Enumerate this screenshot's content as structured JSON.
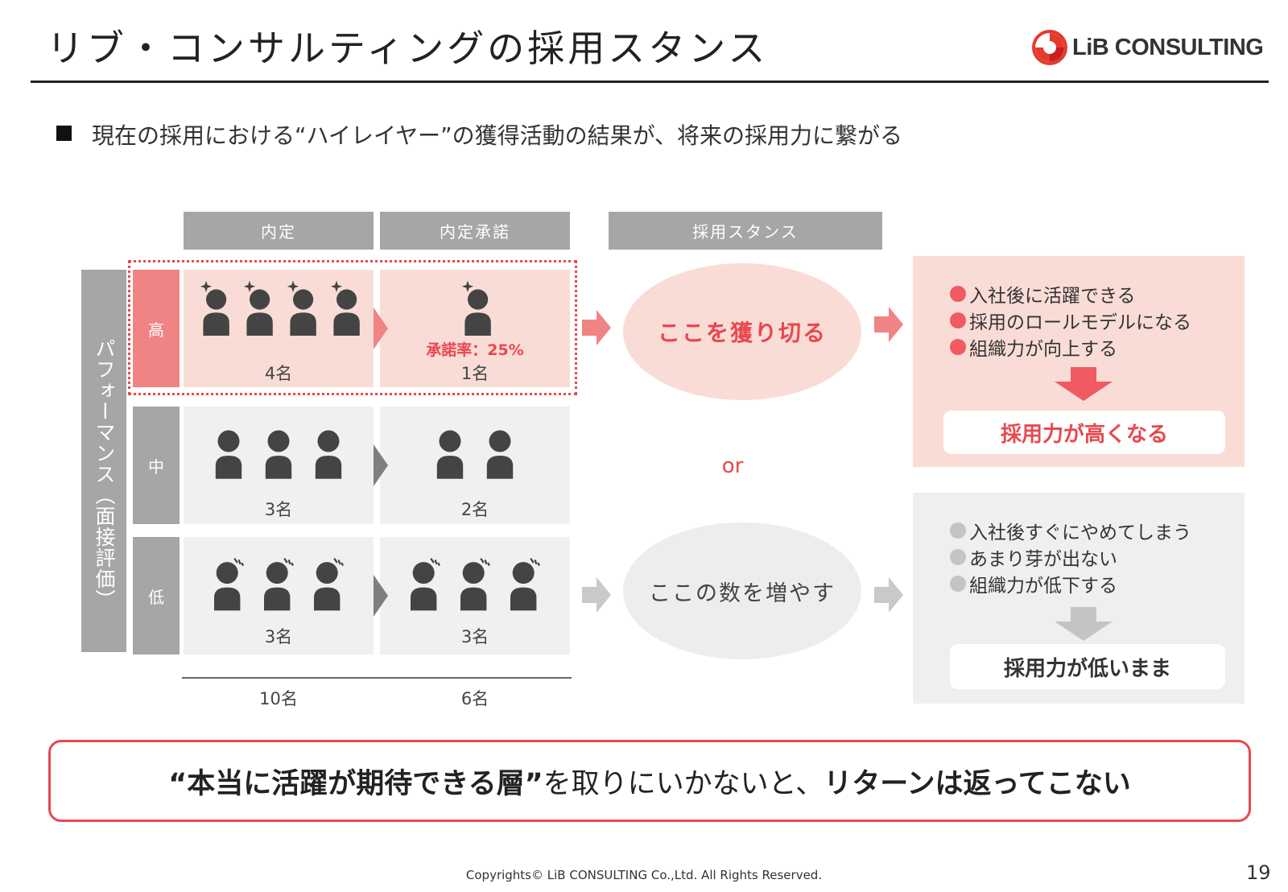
{
  "header": {
    "title": "リブ・コンサルティングの採用スタンス",
    "logo_text": "LiB CONSULTING"
  },
  "subtitle": "現在の採用における“ハイレイヤー”の獲得活動の結果が、将来の採用力に繋がる",
  "columns": {
    "offer": "内定",
    "acceptance": "内定承諾",
    "stance": "採用スタンス"
  },
  "performance_label": "パフォーマンス（面接評価）",
  "rows": [
    {
      "level": "高",
      "offer_count": "4名",
      "accept_count": "1名",
      "accept_rate": "承諾率：25%",
      "offer_people": 4,
      "accept_people": 1
    },
    {
      "level": "中",
      "offer_count": "3名",
      "accept_count": "2名",
      "offer_people": 3,
      "accept_people": 2
    },
    {
      "level": "低",
      "offer_count": "3名",
      "accept_count": "3名",
      "offer_people": 3,
      "accept_people": 3
    }
  ],
  "totals": {
    "offer": "10名",
    "acceptance": "6名"
  },
  "stances": {
    "high": "ここを獲り切る",
    "or": "or",
    "low": "ここの数を増やす"
  },
  "results": {
    "high": {
      "items": [
        "入社後に活躍できる",
        "採用のロールモデルになる",
        "組織力が向上する"
      ],
      "conclusion": "採用力が高くなる"
    },
    "low": {
      "items": [
        "入社後すぐにやめてしまう",
        "あまり芽が出ない",
        "組織力が低下する"
      ],
      "conclusion": "採用力が低いまま"
    }
  },
  "bottom_message": {
    "part1": "“本当に活躍が期待できる層”",
    "part2": "を取りにいかないと、",
    "part3": "リターンは返ってこない"
  },
  "footer": "Copyrights© LiB CONSULTING Co.,Ltd.  All Rights Reserved.",
  "page_number": "19",
  "colors": {
    "accent_red": "#e8484f",
    "pink_fill": "#fadcd6",
    "gray_header": "#a6a6a6",
    "light_gray": "#f0f0f0",
    "person": "#444444"
  }
}
